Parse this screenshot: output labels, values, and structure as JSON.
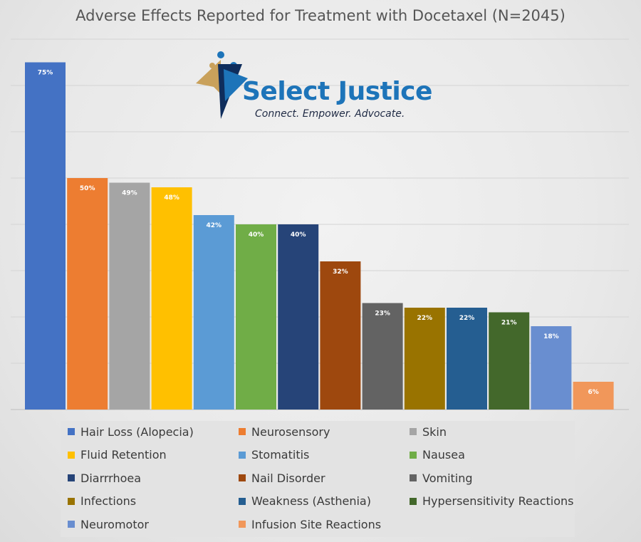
{
  "logo": {
    "name": "Select Justice",
    "tagline": "Connect. Empower. Advocate."
  },
  "chart_data": {
    "type": "bar",
    "title": "Adverse Effects Reported for Treatment with Docetaxel (N=2045)",
    "xlabel": "",
    "ylabel": "",
    "ylim": [
      0,
      80
    ],
    "grid": true,
    "legend_position": "bottom",
    "categories": [
      "Hair Loss (Alopecia)",
      "Neurosensory",
      "Skin",
      "Fluid Retention",
      "Stomatitis",
      "Nausea",
      "Diarrrhoea",
      "Nail Disorder",
      "Vomiting",
      "Infections",
      "Weakness (Asthenia)",
      "Hypersensitivity Reactions",
      "Neuromotor",
      "Infusion Site Reactions"
    ],
    "values": [
      75,
      50,
      49,
      48,
      42,
      40,
      40,
      32,
      23,
      22,
      22,
      21,
      18,
      6
    ],
    "data_labels": [
      "75%",
      "50%",
      "49%",
      "48%",
      "42%",
      "40%",
      "40%",
      "32%",
      "23%",
      "22%",
      "22%",
      "21%",
      "18%",
      "6%"
    ],
    "colors": [
      "#4472c4",
      "#ed7d31",
      "#a5a5a5",
      "#ffc000",
      "#5b9bd5",
      "#70ad47",
      "#264478",
      "#9e480e",
      "#636363",
      "#997300",
      "#255e91",
      "#43682b",
      "#698ed0",
      "#f1975a"
    ]
  }
}
